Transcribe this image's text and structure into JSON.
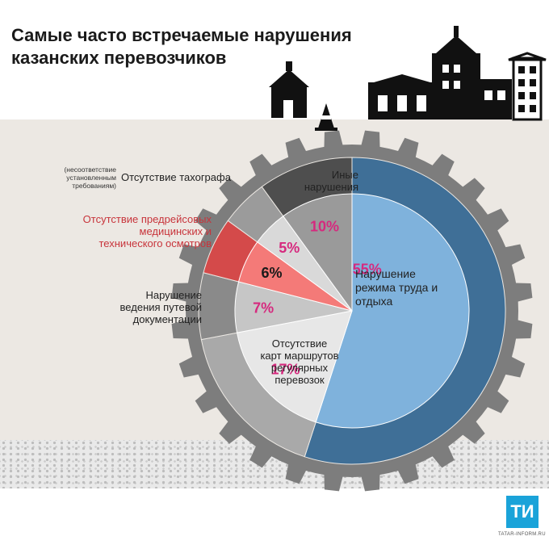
{
  "title": "Самые часто встречаемые нарушения казанских перевозчиков",
  "chart_data": {
    "type": "pie",
    "unit": "%",
    "slices": [
      {
        "label": "Нарушение режима труда и отдыха",
        "value": 55,
        "value_label": "55%",
        "color": "#7fb2dc"
      },
      {
        "label": "Отсутствие карт маршрутов регулярных перевозок",
        "value": 17,
        "value_label": "17%",
        "color": "#e7e7e7"
      },
      {
        "label": "Нарушение ведения путевой документации",
        "value": 7,
        "value_label": "7%",
        "color": "#c6c6c6"
      },
      {
        "label": "Отсутствие предрейсовых медицинских и технического осмотров",
        "value": 6,
        "value_label": "6%",
        "color": "#f47a78"
      },
      {
        "label": "Отсутствие тахографа",
        "note": "(несоответствие установленным требованиям)",
        "value": 5,
        "value_label": "5%",
        "color": "#d9d9d9"
      },
      {
        "label": "Иные нарушения",
        "value": 10,
        "value_label": "10%",
        "color": "#9a9a9a"
      }
    ],
    "outer_ring_colors": [
      "#3f6f97",
      "#a9a9a9",
      "#8a8a8a",
      "#d44a4a",
      "#9b9b9b",
      "#4e4e4e"
    ],
    "value_label_color": "#d6297e",
    "highlight_value_label_color": "#1a1a1a"
  },
  "logo": {
    "text": "ТИ",
    "site": "TATAR-INFORM.RU"
  }
}
